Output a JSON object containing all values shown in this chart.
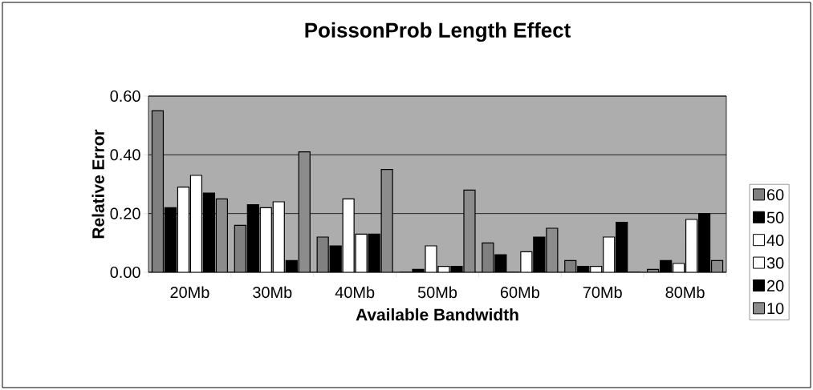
{
  "chart_data": {
    "type": "bar",
    "title": "PoissonProb Length Effect",
    "xlabel": "Available Bandwidth",
    "ylabel": "Relative Error",
    "categories": [
      "20Mb",
      "30Mb",
      "40Mb",
      "50Mb",
      "60Mb",
      "70Mb",
      "80Mb"
    ],
    "series": [
      {
        "name": "60",
        "color": "#808080",
        "values": [
          0.55,
          0.16,
          0.12,
          0.0,
          0.1,
          0.04,
          0.01
        ]
      },
      {
        "name": "50",
        "color": "#000000",
        "values": [
          0.22,
          0.23,
          0.09,
          0.01,
          0.06,
          0.02,
          0.04
        ]
      },
      {
        "name": "40",
        "color": "#ffffff",
        "values": [
          0.29,
          0.22,
          0.25,
          0.09,
          0.0,
          0.02,
          0.03
        ]
      },
      {
        "name": "30",
        "color": "#ffffff",
        "values": [
          0.33,
          0.24,
          0.13,
          0.02,
          0.07,
          0.12,
          0.18
        ]
      },
      {
        "name": "20",
        "color": "#000000",
        "values": [
          0.27,
          0.04,
          0.13,
          0.02,
          0.12,
          0.17,
          0.2
        ]
      },
      {
        "name": "10",
        "color": "#8c8c8c",
        "values": [
          0.25,
          0.41,
          0.35,
          0.28,
          0.15,
          0.0,
          0.04
        ]
      }
    ],
    "ylim": [
      0,
      0.6
    ],
    "yticks": [
      {
        "value": 0,
        "label": "0.00"
      },
      {
        "value": 0.2,
        "label": "0.20"
      },
      {
        "value": 0.4,
        "label": "0.40"
      },
      {
        "value": 0.6,
        "label": "0.60"
      }
    ],
    "grid": "y",
    "legend": "right"
  }
}
